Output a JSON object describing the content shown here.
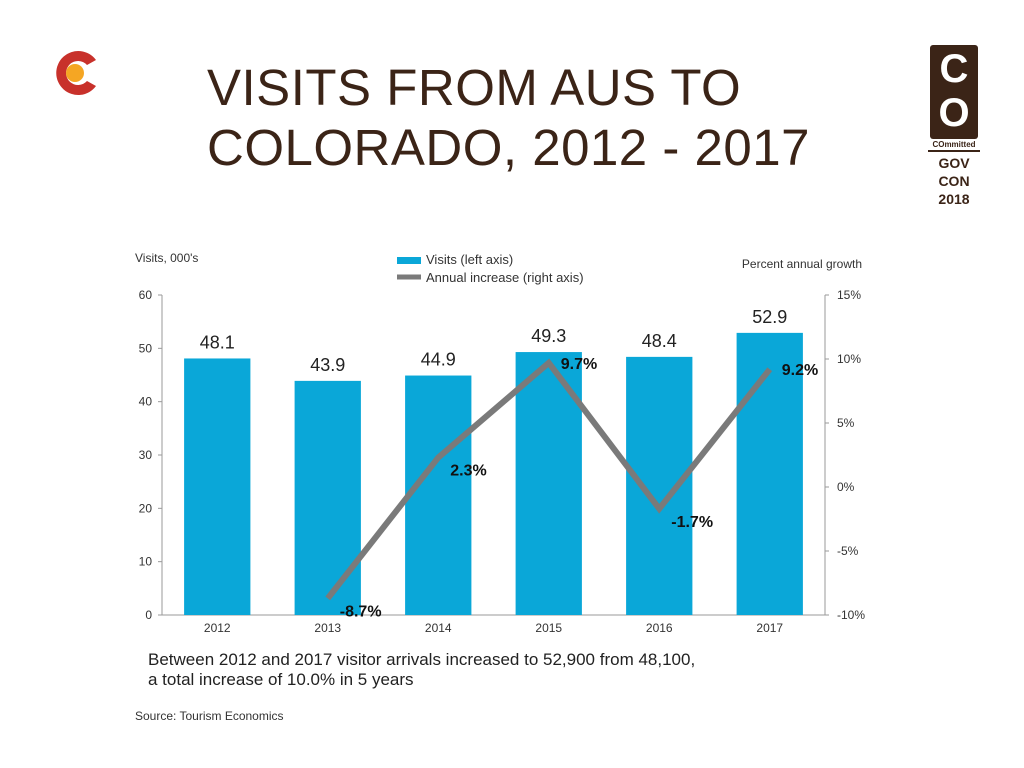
{
  "slide": {
    "title_line1": "VISITS FROM AUS TO",
    "title_line2": "COLORADO, 2012 - 2017",
    "note_line1": "Between 2012 and 2017 visitor arrivals increased to 52,900 from 48,100,",
    "note_line2": "a total increase of 10.0% in 5 years",
    "source": "Source: Tourism Economics"
  },
  "logo_right": {
    "letters_top": "C",
    "letters_bottom": "O",
    "tagline": "COmmitted",
    "event_line1": "GOV",
    "event_line2": "CON",
    "event_line3": "2018",
    "color": "#3b2417"
  },
  "logo_left": {
    "icon": "colorado-flag-c-icon",
    "colors": [
      "#c8312b",
      "#f5a623"
    ]
  },
  "chart_data": {
    "type": "bar",
    "categories": [
      "2012",
      "2013",
      "2014",
      "2015",
      "2016",
      "2017"
    ],
    "series": [
      {
        "name": "Visits (left axis)",
        "type": "bar",
        "axis": "left",
        "color": "#0aa7d8",
        "values": [
          48.1,
          43.9,
          44.9,
          49.3,
          48.4,
          52.9
        ],
        "labels": [
          "48.1",
          "43.9",
          "44.9",
          "49.3",
          "48.4",
          "52.9"
        ]
      },
      {
        "name": "Annual increase (right axis)",
        "type": "line",
        "axis": "right",
        "color": "#7a7a7a",
        "values": [
          null,
          -8.7,
          2.3,
          9.7,
          -1.7,
          9.2
        ],
        "labels": [
          "",
          "-8.7%",
          "2.3%",
          "9.7%",
          "-1.7%",
          "9.2%"
        ]
      }
    ],
    "ylabel_left": "Visits, 000's",
    "ylabel_right": "Percent annual growth",
    "ylim_left": [
      0,
      60
    ],
    "yticks_left": [
      "0",
      "10",
      "20",
      "30",
      "40",
      "50",
      "60"
    ],
    "ylim_right": [
      -10,
      15
    ],
    "yticks_right": [
      "-10%",
      "-5%",
      "0%",
      "5%",
      "10%",
      "15%"
    ],
    "legend_position": "top-center",
    "grid": false
  }
}
